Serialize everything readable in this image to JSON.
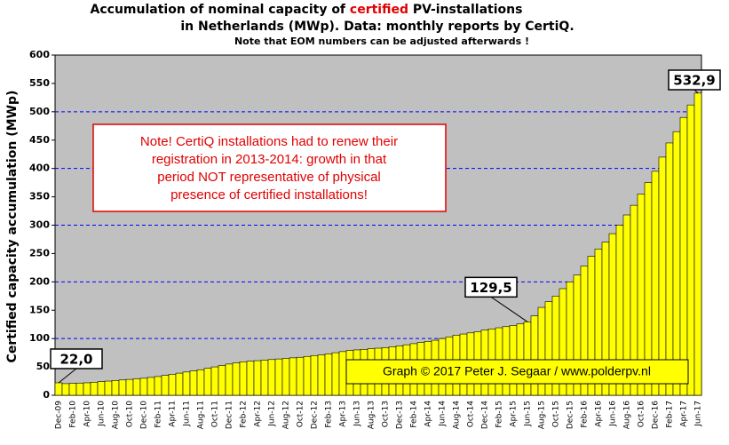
{
  "chart_data": {
    "type": "bar",
    "title": [
      "Accumulation  of nominal  capacity  of ",
      "certified",
      " PV-installations"
    ],
    "subtitle": "in Netherlands (MWp). Data: monthly  reports by CertiQ.",
    "note": "Note that EOM numbers can be adjusted afterwards  !",
    "y_label": "Certified capacity accumulation (MWp)",
    "annotation": [
      "Note! CertiQ installations had to renew their",
      "registration in 2013-2014:  growth in that",
      "period NOT representative of physical",
      "presence of certified installations!"
    ],
    "credit": "Graph © 2017 Peter J. Segaar / www.polderpv.nl",
    "color": "#ffff00",
    "ylim": [
      0,
      600
    ],
    "yticks": [
      0,
      50,
      100,
      150,
      200,
      250,
      300,
      350,
      400,
      450,
      500,
      550,
      600
    ],
    "grid": true,
    "categories": [
      "Dec-09",
      null,
      "Feb-10",
      null,
      "Apr-10",
      null,
      "Jun-10",
      null,
      "Aug-10",
      null,
      "Oct-10",
      null,
      "Dec-10",
      null,
      "Feb-11",
      null,
      "Apr-11",
      null,
      "Jun-11",
      null,
      "Aug-11",
      null,
      "Oct-11",
      null,
      "Dec-11",
      null,
      "Feb-12",
      null,
      "Apr-12",
      null,
      "Jun-12",
      null,
      "Aug-12",
      null,
      "Oct-12",
      null,
      "Dec-12",
      null,
      "Feb-13",
      null,
      "Apr-13",
      null,
      "Jun-13",
      null,
      "Aug-13",
      null,
      "Oct-13",
      null,
      "Dec-13",
      null,
      "Feb-14",
      null,
      "Apr-14",
      null,
      "Jun-14",
      null,
      "Aug-14",
      null,
      "Oct-14",
      null,
      "Dec-14",
      null,
      "Feb-15",
      null,
      "Apr-15",
      null,
      "Jun-15",
      null,
      "Aug-15",
      null,
      "Oct-15",
      null,
      "Dec-15",
      null,
      "Feb-16",
      null,
      "Apr-16",
      null,
      "Jun-16",
      null,
      "Aug-16",
      null,
      "Oct-16",
      null,
      "Dec-16",
      null,
      "Feb-17",
      null,
      "Apr-17",
      null,
      "Jun-17"
    ],
    "values": [
      22.0,
      20.5,
      21,
      21.5,
      22,
      23,
      24,
      25,
      26,
      27,
      28,
      29,
      30,
      31.5,
      33,
      35,
      37,
      39,
      41,
      43,
      45,
      47.5,
      50,
      52.5,
      55,
      57,
      59,
      60,
      61,
      62,
      63,
      64,
      65,
      66,
      67,
      68.5,
      70,
      71,
      73,
      75,
      77,
      79,
      80,
      81,
      82,
      83,
      84,
      85.5,
      87,
      89,
      91,
      93,
      95,
      97,
      100,
      103,
      106,
      108,
      110,
      112,
      115,
      117,
      119,
      121,
      123,
      126,
      129.5,
      140,
      155,
      165,
      175,
      188,
      200,
      212,
      228,
      245,
      258,
      270,
      285,
      300,
      318,
      335,
      355,
      375,
      395,
      420,
      445,
      465,
      490,
      512,
      532.9
    ],
    "value_labels": [
      "22,0",
      null,
      null,
      null,
      null,
      null,
      null,
      null,
      null,
      null,
      null,
      null,
      null,
      null,
      null,
      null,
      null,
      null,
      null,
      null,
      null,
      null,
      null,
      null,
      null,
      null,
      null,
      null,
      null,
      null,
      null,
      null,
      null,
      null,
      null,
      null,
      null,
      null,
      null,
      null,
      null,
      null,
      null,
      null,
      null,
      null,
      null,
      null,
      null,
      null,
      null,
      null,
      null,
      null,
      null,
      null,
      null,
      null,
      null,
      null,
      null,
      null,
      null,
      null,
      null,
      null,
      "129,5",
      null,
      null,
      null,
      null,
      null,
      null,
      null,
      null,
      null,
      null,
      null,
      null,
      null,
      null,
      null,
      null,
      null,
      null,
      null,
      null,
      null,
      null,
      null,
      "532,9"
    ]
  }
}
